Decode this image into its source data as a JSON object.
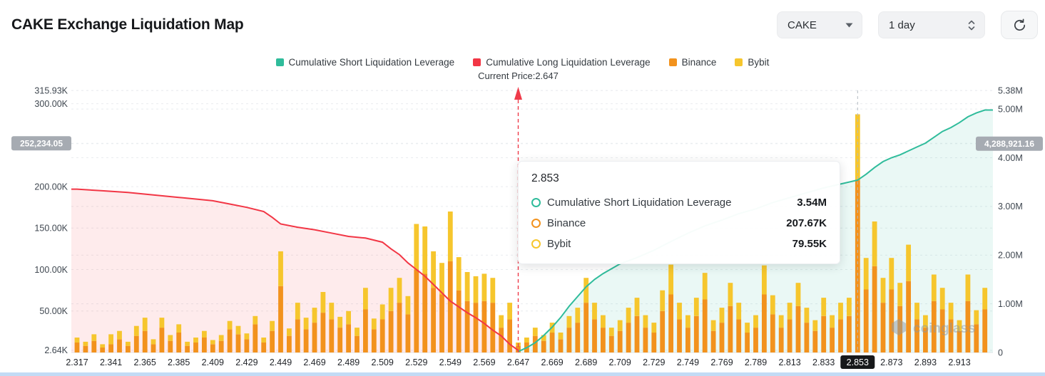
{
  "header": {
    "title": "CAKE Exchange Liquidation Map",
    "symbol": "CAKE",
    "timeframe": "1 day"
  },
  "legend": {
    "items": [
      {
        "label": "Cumulative Short Liquidation Leverage",
        "color": "#2fbc9b"
      },
      {
        "label": "Cumulative Long Liquidation Leverage",
        "color": "#f23645"
      },
      {
        "label": "Binance",
        "color": "#f2921d"
      },
      {
        "label": "Bybit",
        "color": "#f6c62d"
      }
    ]
  },
  "tooltip": {
    "title": "2.853",
    "rows": [
      {
        "label": "Cumulative Short Liquidation Leverage",
        "value": "3.54M",
        "color": "#2fbc9b"
      },
      {
        "label": "Binance",
        "value": "207.67K",
        "color": "#f2921d"
      },
      {
        "label": "Bybit",
        "value": "79.55K",
        "color": "#f6c62d"
      }
    ]
  },
  "watermark": "coinglass",
  "chart_data": {
    "type": "combo_bar_line",
    "title": "CAKE Exchange Liquidation Map",
    "current_price": {
      "label": "Current Price:2.647",
      "x_label": "2.647",
      "value": 2.647
    },
    "highlight": {
      "x_label": "2.853"
    },
    "bars_per_label": 4,
    "x_labels": [
      "2.317",
      "2.341",
      "2.365",
      "2.385",
      "2.409",
      "2.429",
      "2.449",
      "2.469",
      "2.489",
      "2.509",
      "2.529",
      "2.549",
      "2.569",
      "2.647",
      "2.669",
      "2.689",
      "2.709",
      "2.729",
      "2.749",
      "2.769",
      "2.789",
      "2.813",
      "2.833",
      "2.853",
      "2.873",
      "2.893",
      "2.913"
    ],
    "left_axis": {
      "unit": "K",
      "max": 322,
      "ticks": [
        {
          "label": "315.93K",
          "value": 315.93
        },
        {
          "label": "300.00K",
          "value": 300
        },
        {
          "label": "200.00K",
          "value": 200
        },
        {
          "label": "150.00K",
          "value": 150
        },
        {
          "label": "100.00K",
          "value": 100
        },
        {
          "label": "50.00K",
          "value": 50
        },
        {
          "label": "2.64K",
          "value": 2.64
        }
      ],
      "badge": {
        "label": "252,234.05",
        "value": 252.23405
      }
    },
    "right_axis": {
      "unit": "M",
      "max": 5.484,
      "ticks": [
        {
          "label": "5.38M",
          "value": 5.38
        },
        {
          "label": "5.00M",
          "value": 5
        },
        {
          "label": "4.00M",
          "value": 4
        },
        {
          "label": "3.00M",
          "value": 3
        },
        {
          "label": "2.00M",
          "value": 2
        },
        {
          "label": "1.00M",
          "value": 1
        },
        {
          "label": "0",
          "value": 0
        }
      ],
      "badge": {
        "label": "4,288,921.16",
        "value": 4.28892116
      }
    },
    "series": [
      {
        "name": "Binance",
        "type": "bar",
        "axis": "left",
        "unit": "K",
        "color": "#f2921d",
        "values": [
          12,
          8,
          14,
          6,
          10,
          16,
          8,
          20,
          26,
          10,
          30,
          14,
          24,
          8,
          12,
          18,
          10,
          14,
          28,
          22,
          16,
          34,
          12,
          26,
          80,
          20,
          40,
          28,
          36,
          48,
          40,
          30,
          34,
          20,
          52,
          28,
          40,
          50,
          60,
          46,
          100,
          95,
          78,
          70,
          110,
          75,
          62,
          60,
          62,
          60,
          30,
          40,
          8,
          12,
          20,
          14,
          24,
          16,
          30,
          36,
          60,
          40,
          30,
          20,
          26,
          36,
          44,
          30,
          24,
          50,
          70,
          40,
          30,
          44,
          64,
          26,
          36,
          56,
          40,
          24,
          30,
          70,
          46,
          30,
          40,
          56,
          36,
          26,
          44,
          30,
          40,
          44,
          207.67,
          76,
          104,
          60,
          76,
          56,
          86,
          40,
          30,
          62,
          52,
          40,
          26,
          62,
          34,
          52
        ]
      },
      {
        "name": "Bybit",
        "type": "bar",
        "axis": "left",
        "unit": "K",
        "color": "#f6c62d",
        "values": [
          6,
          5,
          8,
          4,
          12,
          10,
          5,
          12,
          16,
          6,
          12,
          7,
          10,
          5,
          6,
          8,
          5,
          7,
          10,
          10,
          7,
          10,
          6,
          12,
          42,
          9,
          20,
          14,
          18,
          25,
          20,
          13,
          16,
          10,
          26,
          13,
          18,
          28,
          30,
          22,
          55,
          57,
          44,
          38,
          60,
          40,
          35,
          32,
          33,
          30,
          15,
          20,
          4,
          6,
          10,
          7,
          12,
          8,
          14,
          18,
          30,
          20,
          15,
          10,
          13,
          18,
          22,
          15,
          12,
          25,
          36,
          20,
          15,
          22,
          32,
          13,
          18,
          28,
          20,
          12,
          15,
          35,
          23,
          15,
          20,
          28,
          18,
          13,
          22,
          15,
          20,
          22,
          79.55,
          38,
          54,
          30,
          38,
          28,
          44,
          20,
          15,
          32,
          26,
          20,
          13,
          32,
          17,
          26
        ]
      },
      {
        "name": "Cumulative Long Liquidation Leverage",
        "type": "line",
        "axis": "left",
        "unit": "K",
        "color": "#f23645",
        "fill": "rgba(242,54,69,0.10)",
        "points": [
          [
            0,
            197
          ],
          [
            3,
            195
          ],
          [
            6,
            193
          ],
          [
            9,
            190
          ],
          [
            12,
            187
          ],
          [
            14,
            185
          ],
          [
            16,
            183
          ],
          [
            18,
            179
          ],
          [
            20,
            175
          ],
          [
            22,
            170
          ],
          [
            23,
            163
          ],
          [
            24,
            155
          ],
          [
            26,
            151
          ],
          [
            28,
            148
          ],
          [
            30,
            144
          ],
          [
            32,
            140
          ],
          [
            34,
            138
          ],
          [
            36,
            133
          ],
          [
            37,
            125
          ],
          [
            38,
            118
          ],
          [
            39,
            108
          ],
          [
            40,
            100
          ],
          [
            41,
            92
          ],
          [
            42,
            82
          ],
          [
            43,
            72
          ],
          [
            44,
            62
          ],
          [
            45,
            55
          ],
          [
            46,
            48
          ],
          [
            47,
            42
          ],
          [
            48,
            35
          ],
          [
            49,
            27
          ],
          [
            50,
            20
          ],
          [
            51,
            10
          ],
          [
            52,
            2.64
          ]
        ]
      },
      {
        "name": "Cumulative Short Liquidation Leverage",
        "type": "line",
        "axis": "right",
        "unit": "M",
        "color": "#2fbc9b",
        "fill": "rgba(47,188,155,0.10)",
        "points": [
          [
            52,
            0.02
          ],
          [
            53,
            0.1
          ],
          [
            54,
            0.2
          ],
          [
            55,
            0.35
          ],
          [
            56,
            0.52
          ],
          [
            57,
            0.72
          ],
          [
            58,
            0.95
          ],
          [
            59,
            1.15
          ],
          [
            60,
            1.35
          ],
          [
            61,
            1.5
          ],
          [
            62,
            1.62
          ],
          [
            63,
            1.72
          ],
          [
            64,
            1.82
          ],
          [
            66,
            1.95
          ],
          [
            68,
            2.1
          ],
          [
            70,
            2.28
          ],
          [
            72,
            2.45
          ],
          [
            74,
            2.6
          ],
          [
            76,
            2.72
          ],
          [
            78,
            2.85
          ],
          [
            80,
            2.95
          ],
          [
            82,
            3.08
          ],
          [
            84,
            3.18
          ],
          [
            86,
            3.28
          ],
          [
            88,
            3.38
          ],
          [
            90,
            3.46
          ],
          [
            92,
            3.54
          ],
          [
            93,
            3.66
          ],
          [
            94,
            3.8
          ],
          [
            95,
            3.92
          ],
          [
            96,
            4.0
          ],
          [
            97,
            4.06
          ],
          [
            98,
            4.14
          ],
          [
            99,
            4.22
          ],
          [
            100,
            4.3
          ],
          [
            101,
            4.42
          ],
          [
            102,
            4.54
          ],
          [
            103,
            4.62
          ],
          [
            104,
            4.72
          ],
          [
            105,
            4.84
          ],
          [
            106,
            4.92
          ],
          [
            107,
            4.98
          ]
        ]
      }
    ]
  }
}
